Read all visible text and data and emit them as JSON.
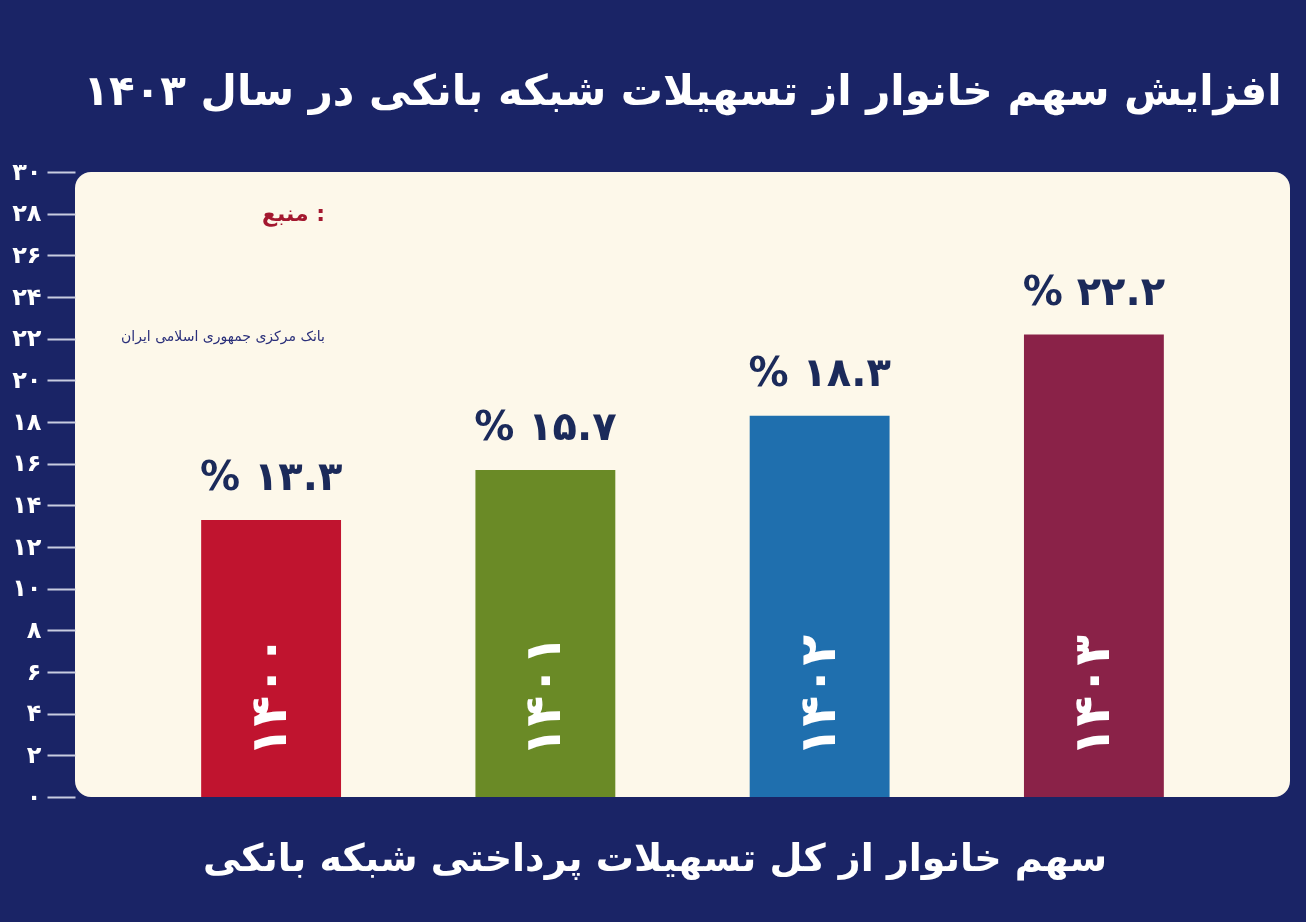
{
  "chart_data": {
    "type": "bar",
    "title": "افزایش سهم خانوار از تسهیلات شبکه بانکی در سال ۱۴۰۳",
    "categories": [
      "۱۴۰۰",
      "۱۴۰۱",
      "۱۴۰۲",
      "۱۴۰۳"
    ],
    "values": [
      13.3,
      15.7,
      18.3,
      22.2
    ],
    "colors": [
      "#c0142f",
      "#6a8a26",
      "#1f6fae",
      "#8a2248"
    ],
    "value_labels": [
      "% ۱۳.۳",
      "% ۱۵.۷",
      "% ۱۸.۳",
      "% ۲۲.۲"
    ],
    "ylim": [
      0,
      30
    ],
    "yticks": [
      {
        "value": 0,
        "label": "۰"
      },
      {
        "value": 2,
        "label": "۲"
      },
      {
        "value": 4,
        "label": "۴"
      },
      {
        "value": 6,
        "label": "۶"
      },
      {
        "value": 8,
        "label": "۸"
      },
      {
        "value": 10,
        "label": "۱۰"
      },
      {
        "value": 12,
        "label": "۱۲"
      },
      {
        "value": 14,
        "label": "۱۴"
      },
      {
        "value": 16,
        "label": "۱۶"
      },
      {
        "value": 18,
        "label": "۱۸"
      },
      {
        "value": 20,
        "label": "۲۰"
      },
      {
        "value": 22,
        "label": "۲۲"
      },
      {
        "value": 24,
        "label": "۲۴"
      },
      {
        "value": 26,
        "label": "۲۶"
      },
      {
        "value": 28,
        "label": "۲۸"
      },
      {
        "value": 30,
        "label": "۳۰"
      }
    ],
    "grid": false,
    "annotations": [
      "منبع :",
      "بانک مرکزی جمهوری اسلامی ایران",
      "سهم خانوار از کل تسهیلات پرداختی شبکه بانکی"
    ]
  }
}
